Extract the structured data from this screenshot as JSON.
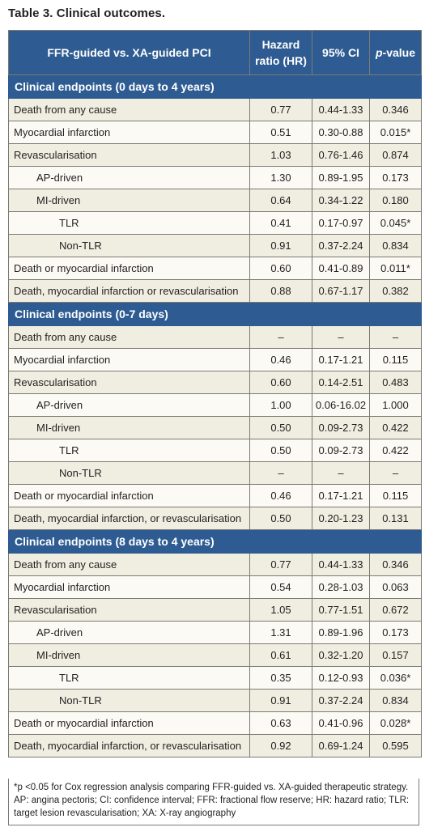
{
  "caption": "Table 3. Clinical outcomes.",
  "header": {
    "comparison": "FFR-guided vs. XA-guided PCI",
    "hr_line1": "Hazard",
    "hr_line2": "ratio (HR)",
    "ci": "95% CI",
    "p_italic": "p",
    "p_rest": "-value"
  },
  "sections": [
    {
      "title": "Clinical endpoints (0 days to 4 years)",
      "rows": [
        {
          "label": "Death from any cause",
          "indent": 0,
          "hr": "0.77",
          "ci": "0.44-1.33",
          "p": "0.346"
        },
        {
          "label": "Myocardial infarction",
          "indent": 0,
          "hr": "0.51",
          "ci": "0.30-0.88",
          "p": "0.015*"
        },
        {
          "label": "Revascularisation",
          "indent": 0,
          "hr": "1.03",
          "ci": "0.76-1.46",
          "p": "0.874"
        },
        {
          "label": "AP-driven",
          "indent": 1,
          "hr": "1.30",
          "ci": "0.89-1.95",
          "p": "0.173"
        },
        {
          "label": "MI-driven",
          "indent": 1,
          "hr": "0.64",
          "ci": "0.34-1.22",
          "p": "0.180"
        },
        {
          "label": "TLR",
          "indent": 2,
          "hr": "0.41",
          "ci": "0.17-0.97",
          "p": "0.045*"
        },
        {
          "label": "Non-TLR",
          "indent": 2,
          "hr": "0.91",
          "ci": "0.37-2.24",
          "p": "0.834"
        },
        {
          "label": "Death or myocardial infarction",
          "indent": 0,
          "hr": "0.60",
          "ci": "0.41-0.89",
          "p": "0.011*"
        },
        {
          "label": "Death, myocardial infarction or revascularisation",
          "indent": 0,
          "hr": "0.88",
          "ci": "0.67-1.17",
          "p": "0.382"
        }
      ]
    },
    {
      "title": "Clinical endpoints (0-7 days)",
      "rows": [
        {
          "label": "Death from any cause",
          "indent": 0,
          "hr": "–",
          "ci": "–",
          "p": "–"
        },
        {
          "label": "Myocardial infarction",
          "indent": 0,
          "hr": "0.46",
          "ci": "0.17-1.21",
          "p": "0.115"
        },
        {
          "label": "Revascularisation",
          "indent": 0,
          "hr": "0.60",
          "ci": "0.14-2.51",
          "p": "0.483"
        },
        {
          "label": "AP-driven",
          "indent": 1,
          "hr": "1.00",
          "ci": "0.06-16.02",
          "p": "1.000"
        },
        {
          "label": "MI-driven",
          "indent": 1,
          "hr": "0.50",
          "ci": "0.09-2.73",
          "p": "0.422"
        },
        {
          "label": "TLR",
          "indent": 2,
          "hr": "0.50",
          "ci": "0.09-2.73",
          "p": "0.422"
        },
        {
          "label": "Non-TLR",
          "indent": 2,
          "hr": "–",
          "ci": "–",
          "p": "–"
        },
        {
          "label": "Death or myocardial infarction",
          "indent": 0,
          "hr": "0.46",
          "ci": "0.17-1.21",
          "p": "0.115"
        },
        {
          "label": "Death, myocardial infarction, or revascularisation",
          "indent": 0,
          "hr": "0.50",
          "ci": "0.20-1.23",
          "p": "0.131"
        }
      ]
    },
    {
      "title": "Clinical endpoints (8 days to 4 years)",
      "rows": [
        {
          "label": "Death from any cause",
          "indent": 0,
          "hr": "0.77",
          "ci": "0.44-1.33",
          "p": "0.346"
        },
        {
          "label": "Myocardial infarction",
          "indent": 0,
          "hr": "0.54",
          "ci": "0.28-1.03",
          "p": "0.063"
        },
        {
          "label": "Revascularisation",
          "indent": 0,
          "hr": "1.05",
          "ci": "0.77-1.51",
          "p": "0.672"
        },
        {
          "label": "AP-driven",
          "indent": 1,
          "hr": "1.31",
          "ci": "0.89-1.96",
          "p": "0.173"
        },
        {
          "label": "MI-driven",
          "indent": 1,
          "hr": "0.61",
          "ci": "0.32-1.20",
          "p": "0.157"
        },
        {
          "label": "TLR",
          "indent": 2,
          "hr": "0.35",
          "ci": "0.12-0.93",
          "p": "0.036*"
        },
        {
          "label": "Non-TLR",
          "indent": 2,
          "hr": "0.91",
          "ci": "0.37-2.24",
          "p": "0.834"
        },
        {
          "label": "Death or myocardial infarction",
          "indent": 0,
          "hr": "0.63",
          "ci": "0.41-0.96",
          "p": "0.028*"
        },
        {
          "label": "Death, myocardial infarction, or revascularisation",
          "indent": 0,
          "hr": "0.92",
          "ci": "0.69-1.24",
          "p": "0.595"
        }
      ]
    }
  ],
  "footnote": "*p <0.05 for Cox regression analysis comparing FFR-guided vs. XA-guided therapeutic strategy. AP: angina pectoris; CI: confidence interval; FFR: fractional flow reserve; HR: hazard ratio; TLR: target lesion revascularisation; XA: X-ray angiography",
  "colors": {
    "header_bg": "#2e5c92",
    "row_bg": "#f0ede1",
    "row_alt_bg": "#fbfaf5"
  }
}
